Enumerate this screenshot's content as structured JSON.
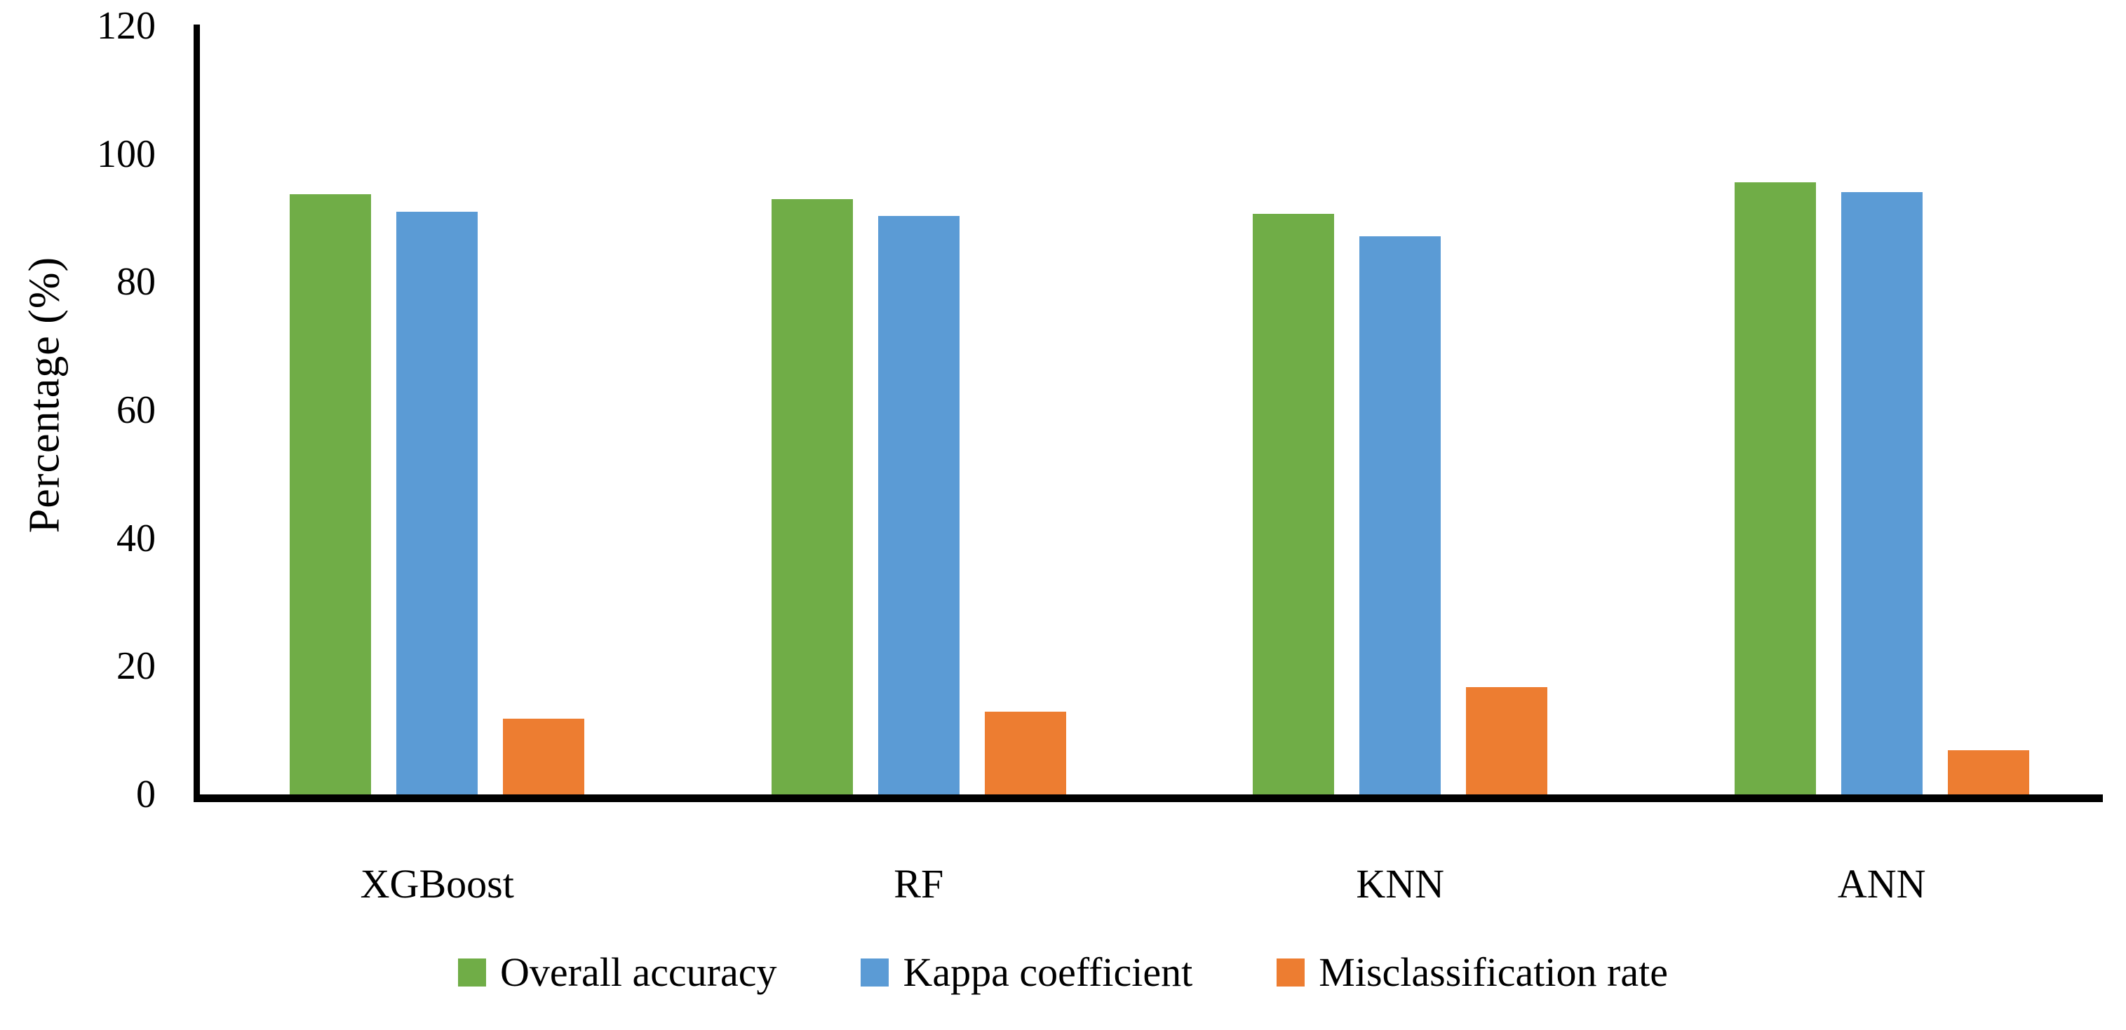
{
  "figure": {
    "background_color": "#ffffff",
    "axis_color": "#000000"
  },
  "chart_data": {
    "type": "bar",
    "title": "",
    "xlabel": "",
    "ylabel": "Percentage (%)",
    "ylim": [
      0,
      120
    ],
    "yticks": [
      0,
      20,
      40,
      60,
      80,
      100,
      120
    ],
    "grid": false,
    "legend_position": "bottom",
    "categories": [
      "XGBoost",
      "RF",
      "KNN",
      "ANN"
    ],
    "series": [
      {
        "name": "Overall accuracy",
        "color": "#70AD47",
        "values": [
          93.7,
          93.0,
          90.7,
          95.6
        ]
      },
      {
        "name": "Kappa coefficient",
        "color": "#5B9BD5",
        "values": [
          91.0,
          90.3,
          87.2,
          94.0
        ]
      },
      {
        "name": "Misclassification rate",
        "color": "#ED7D31",
        "values": [
          11.8,
          12.9,
          16.8,
          6.9
        ]
      }
    ]
  }
}
